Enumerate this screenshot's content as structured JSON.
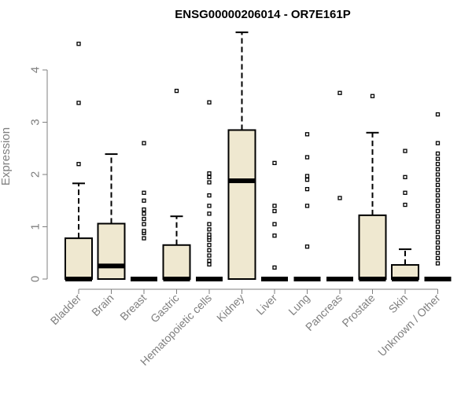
{
  "chart_data": {
    "type": "boxplot",
    "title": "ENSG00000206014 - OR7E161P",
    "xlabel": "",
    "ylabel": "Expression",
    "ylim": [
      0,
      4.8
    ],
    "yticks": [
      0,
      1,
      2,
      3,
      4
    ],
    "grid": false,
    "legend": "none",
    "box_fill": "#efe8d0",
    "box_stroke": "#000000",
    "median_color": "#000000",
    "categories": [
      "Bladder",
      "Brain",
      "Breast",
      "Gastric",
      "Hematopoietic cells",
      "Kidney",
      "Liver",
      "Lung",
      "Pancreas",
      "Prostate",
      "Skin",
      "Unknown / Other"
    ],
    "boxes": [
      {
        "category": "Bladder",
        "q1": 0,
        "median": 0,
        "q3": 0.78,
        "whisker_low": 0,
        "whisker_high": 1.83,
        "outliers": [
          2.2,
          3.37,
          4.5
        ]
      },
      {
        "category": "Brain",
        "q1": 0,
        "median": 0.25,
        "q3": 1.06,
        "whisker_low": 0,
        "whisker_high": 2.39,
        "outliers": []
      },
      {
        "category": "Breast",
        "q1": 0,
        "median": 0,
        "q3": 0,
        "whisker_low": 0,
        "whisker_high": 0,
        "outliers": [
          0.78,
          0.88,
          0.92,
          1.05,
          1.15,
          1.25,
          1.33,
          1.5,
          1.65,
          2.6
        ]
      },
      {
        "category": "Gastric",
        "q1": 0,
        "median": 0,
        "q3": 0.65,
        "whisker_low": 0,
        "whisker_high": 1.2,
        "outliers": [
          3.6
        ]
      },
      {
        "category": "Hematopoietic cells",
        "q1": 0,
        "median": 0,
        "q3": 0,
        "whisker_low": 0,
        "whisker_high": 0,
        "outliers": [
          0.28,
          0.35,
          0.45,
          0.55,
          0.65,
          0.75,
          0.8,
          0.85,
          0.95,
          1.05,
          1.25,
          1.4,
          1.6,
          1.85,
          1.95,
          2.02,
          3.38
        ]
      },
      {
        "category": "Kidney",
        "q1": 0,
        "median": 1.88,
        "q3": 2.85,
        "whisker_low": 0,
        "whisker_high": 4.72,
        "outliers": []
      },
      {
        "category": "Liver",
        "q1": 0,
        "median": 0,
        "q3": 0,
        "whisker_low": 0,
        "whisker_high": 0,
        "outliers": [
          0.22,
          0.83,
          1.05,
          1.3,
          1.4,
          2.22
        ]
      },
      {
        "category": "Lung",
        "q1": 0,
        "median": 0,
        "q3": 0,
        "whisker_low": 0,
        "whisker_high": 0,
        "outliers": [
          0.62,
          1.4,
          1.72,
          1.9,
          1.97,
          2.33,
          2.77
        ]
      },
      {
        "category": "Pancreas",
        "q1": 0,
        "median": 0,
        "q3": 0,
        "whisker_low": 0,
        "whisker_high": 0,
        "outliers": [
          1.55,
          3.56
        ]
      },
      {
        "category": "Prostate",
        "q1": 0,
        "median": 0,
        "q3": 1.22,
        "whisker_low": 0,
        "whisker_high": 2.8,
        "outliers": [
          3.5
        ]
      },
      {
        "category": "Skin",
        "q1": 0,
        "median": 0,
        "q3": 0.27,
        "whisker_low": 0,
        "whisker_high": 0.57,
        "outliers": [
          1.42,
          1.65,
          1.95,
          2.45
        ]
      },
      {
        "category": "Unknown / Other",
        "q1": 0,
        "median": 0,
        "q3": 0,
        "whisker_low": 0,
        "whisker_high": 0,
        "outliers": [
          0.3,
          0.4,
          0.5,
          0.6,
          0.7,
          0.8,
          0.9,
          1.0,
          1.1,
          1.2,
          1.3,
          1.4,
          1.5,
          1.6,
          1.7,
          1.8,
          1.9,
          2.0,
          2.1,
          2.2,
          2.3,
          2.4,
          2.6,
          3.15
        ]
      }
    ]
  }
}
